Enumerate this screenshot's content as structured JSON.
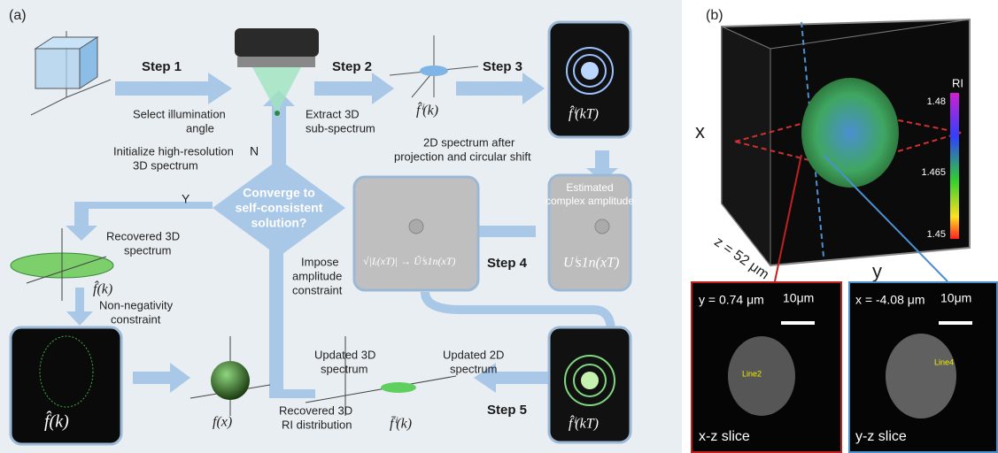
{
  "panel_a": {
    "label": "(a)",
    "steps": [
      "Step 1",
      "Step 2",
      "Step 3",
      "Step 4",
      "Step 5"
    ],
    "decision": [
      "Converge to",
      "self-consistent",
      "solution?"
    ],
    "yes": "Y",
    "no": "N",
    "annotations": {
      "select_angle": [
        "Select illumination",
        "angle"
      ],
      "initialize": [
        "Initialize high-resolution",
        "3D spectrum"
      ],
      "extract": [
        "Extract 3D",
        "sub-spectrum"
      ],
      "projection": [
        "2D spectrum after",
        "projection and circular shift"
      ],
      "estimated": [
        "Estimated",
        "complex amplitude"
      ],
      "recovered_spectrum": [
        "Recovered 3D",
        "spectrum"
      ],
      "impose": [
        "Impose",
        "amplitude",
        "constraint"
      ],
      "non_negativity": [
        "Non-negativity",
        "constraint"
      ],
      "updated_3d": [
        "Updated 3D",
        "spectrum"
      ],
      "updated_2d": [
        "Updated 2D",
        "spectrum"
      ],
      "recovered_ri": [
        "Recovered 3D",
        "RI distribution"
      ]
    },
    "symbols": {
      "sub_spectrum": "f̂ⁱ(k)",
      "spectrum_2d": "f̂ⁱ(kT)",
      "amplitude": "Uⁱs1n(xT)",
      "constraint": "√|Iᵢ(xT)| → Ũⁱs1n(xT)",
      "recovered_spectrum": "f̂(k)",
      "black_box_spectrum": "f̂(k)",
      "object": "f(x)",
      "updated_sub_spectrum": "f̄ⁱ(k)",
      "updated_2d": "f̂ⁱ(kT)"
    }
  },
  "panel_b": {
    "label": "(b)",
    "axis_x": "x",
    "axis_y": "y",
    "depth": "z = 52 μm",
    "colorbar": {
      "title": "RI",
      "ticks": [
        1.48,
        1.465,
        1.45
      ]
    },
    "slices": [
      {
        "position": "y = 0.74 μm",
        "scale": "10μm",
        "marker": "Line2",
        "name": "x-z slice"
      },
      {
        "position": "x = -4.08 μm",
        "scale": "10μm",
        "marker": "Line4",
        "name": "y-z slice"
      }
    ]
  }
}
